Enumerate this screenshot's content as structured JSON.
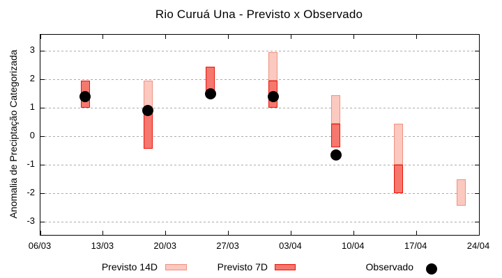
{
  "title": "Rio Curuá Una - Previsto x Observado",
  "y_axis_title": "Anomalia de Preciptação Categorizada",
  "legend": {
    "previsto_14d_label": "Previsto 14D",
    "previsto_7d_label": "Previsto 7D",
    "observado_label": "Observado"
  },
  "colors": {
    "previsto_14d_fill": "#fbc9c0",
    "previsto_14d_border": "#f0907f",
    "previsto_7d_fill": "#f6776d",
    "previsto_7d_border": "#e81409",
    "observado": "#000000",
    "grid": "#aaaaaa",
    "axis": "#000000",
    "background": "#ffffff"
  },
  "chart_data": {
    "type": "ranged-bar",
    "title": "Rio Curuá Una - Previsto x Observado",
    "xlabel": "",
    "ylabel": "Anomalia de Preciptação Categorizada",
    "ylim": [
      -3.45,
      3.55
    ],
    "yticks": [
      3,
      2,
      1,
      0,
      -1,
      -2,
      -3
    ],
    "grid": "horizontal-dashed",
    "legend_position": "bottom",
    "x_axis": {
      "tick_labels": [
        "06/03",
        "13/03",
        "20/03",
        "27/03",
        "03/04",
        "10/04",
        "17/04",
        "24/04"
      ],
      "tick_day_offsets": [
        0,
        7,
        14,
        21,
        28,
        35,
        42,
        49
      ],
      "total_days": 49
    },
    "series_names": [
      "Previsto 14D",
      "Previsto 7D",
      "Observado"
    ],
    "points": [
      {
        "date": "11/03",
        "day_offset": 5,
        "previsto_14d": null,
        "previsto_7d": [
          1.0,
          1.95
        ],
        "observado": 1.4
      },
      {
        "date": "18/03",
        "day_offset": 12,
        "previsto_14d": [
          0.95,
          1.95
        ],
        "previsto_7d": [
          -0.45,
          0.95
        ],
        "observado": 0.9
      },
      {
        "date": "25/03",
        "day_offset": 19,
        "previsto_14d": null,
        "previsto_7d": [
          1.45,
          2.45
        ],
        "observado": 1.5
      },
      {
        "date": "01/04",
        "day_offset": 26,
        "previsto_14d": [
          1.95,
          2.95
        ],
        "previsto_7d": [
          1.0,
          1.95
        ],
        "observado": 1.4
      },
      {
        "date": "08/04",
        "day_offset": 33,
        "previsto_14d": [
          0.45,
          1.45
        ],
        "previsto_7d": [
          -0.4,
          0.45
        ],
        "observado": -0.65
      },
      {
        "date": "15/04",
        "day_offset": 40,
        "previsto_14d": [
          -1.0,
          0.45
        ],
        "previsto_7d": [
          -2.0,
          -1.0
        ],
        "observado": null
      },
      {
        "date": "22/04",
        "day_offset": 47,
        "previsto_14d": [
          -2.45,
          -1.5
        ],
        "previsto_7d": null,
        "observado": null
      }
    ]
  }
}
